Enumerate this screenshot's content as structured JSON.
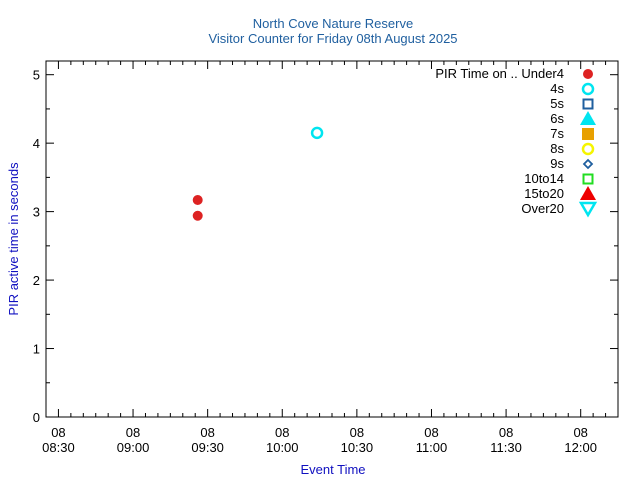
{
  "chart_data": {
    "type": "scatter",
    "title": "North Cove Nature Reserve",
    "subtitle": "Visitor Counter for Friday 08th August 2025",
    "xlabel": "Event Time",
    "ylabel": "PIR active time in seconds",
    "xlim": [
      "08:25",
      "12:15"
    ],
    "ylim": [
      0,
      5.2
    ],
    "x_ticks": [
      {
        "t": "08:30",
        "day": "08",
        "time": "08:30"
      },
      {
        "t": "09:00",
        "day": "08",
        "time": "09:00"
      },
      {
        "t": "09:30",
        "day": "08",
        "time": "09:30"
      },
      {
        "t": "10:00",
        "day": "08",
        "time": "10:00"
      },
      {
        "t": "10:30",
        "day": "08",
        "time": "10:30"
      },
      {
        "t": "11:00",
        "day": "08",
        "time": "11:00"
      },
      {
        "t": "11:30",
        "day": "08",
        "time": "11:30"
      },
      {
        "t": "12:00",
        "day": "08",
        "time": "12:00"
      }
    ],
    "y_ticks": [
      "0",
      "1",
      "2",
      "3",
      "4",
      "5"
    ],
    "grid": false,
    "legend_position": "top-right",
    "series": [
      {
        "name": "PIR Time on .. Under4",
        "marker": "circle-filled",
        "color": "#dd2222",
        "points": [
          {
            "t": "09:26",
            "y": 3.17
          },
          {
            "t": "09:26",
            "y": 2.94
          }
        ]
      },
      {
        "name": "4s",
        "marker": "circle-open",
        "color": "#00e5f0",
        "points": [
          {
            "t": "10:14",
            "y": 4.15
          }
        ]
      },
      {
        "name": "5s",
        "marker": "square-open",
        "color": "#1f5f9f",
        "points": []
      },
      {
        "name": "6s",
        "marker": "triangle-filled",
        "color": "#00e5f0",
        "points": []
      },
      {
        "name": "7s",
        "marker": "square-filled",
        "color": "#e8a000",
        "points": []
      },
      {
        "name": "8s",
        "marker": "circle-open",
        "color": "#f5f500",
        "points": []
      },
      {
        "name": "9s",
        "marker": "diamond-open",
        "color": "#1f5f9f",
        "points": []
      },
      {
        "name": "10to14",
        "marker": "square-open",
        "color": "#22dd22",
        "points": []
      },
      {
        "name": "15to20",
        "marker": "triangle-filled",
        "color": "#ee0000",
        "points": []
      },
      {
        "name": "Over20",
        "marker": "triangle-down-open",
        "color": "#00e5f0",
        "points": []
      }
    ]
  }
}
